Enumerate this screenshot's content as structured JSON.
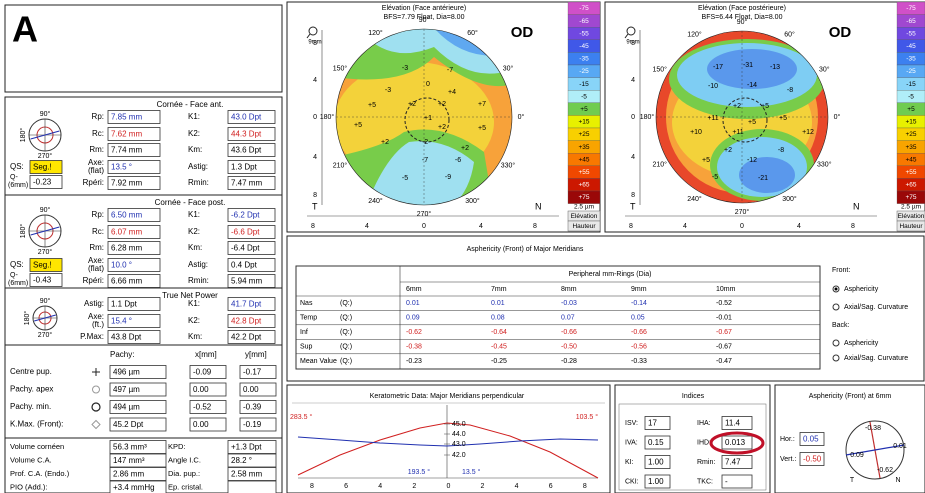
{
  "label": "A",
  "front": {
    "title": "Cornée - Face ant.",
    "icon": [
      "90°",
      "180°",
      "270°"
    ],
    "fields": [
      {
        "label": "Rp:",
        "value": "7.85 mm",
        "color": "#2030b0"
      },
      {
        "label": "Rc:",
        "value": "7.62 mm",
        "color": "#d02020"
      },
      {
        "label": "Rm:",
        "value": "7.74 mm"
      },
      {
        "label": "Axe:",
        "sublabel": "(flat)",
        "value": "13.5 °",
        "color": "#2030b0"
      },
      {
        "label": "Rpéri:",
        "value": "7.92 mm"
      },
      {
        "label": "K1:",
        "value": "43.0 Dpt",
        "color": "#2030b0"
      },
      {
        "label": "K2:",
        "value": "44.3 Dpt",
        "color": "#d02020"
      },
      {
        "label": "Km:",
        "value": "43.6 Dpt"
      },
      {
        "label": "Astig:",
        "value": "1.3 Dpt"
      },
      {
        "label": "Rmin:",
        "value": "7.47 mm"
      }
    ],
    "qs": {
      "label": "QS:",
      "value": "Seg.!"
    },
    "q": {
      "label": "Q-",
      "sublabel": "(6mm)",
      "value": "-0.23"
    }
  },
  "back": {
    "title": "Cornée - Face post.",
    "icon": [
      "90°",
      "180°",
      "270°"
    ],
    "fields": [
      {
        "label": "Rp:",
        "value": "6.50 mm",
        "color": "#2030b0"
      },
      {
        "label": "Rc:",
        "value": "6.07 mm",
        "color": "#d02020"
      },
      {
        "label": "Rm:",
        "value": "6.28 mm"
      },
      {
        "label": "Axe:",
        "sublabel": "(flat)",
        "value": "10.0 °",
        "color": "#2030b0"
      },
      {
        "label": "Rpéri:",
        "value": "6.66 mm"
      },
      {
        "label": "K1:",
        "value": "-6.2 Dpt",
        "color": "#2030b0"
      },
      {
        "label": "K2:",
        "value": "-6.6 Dpt",
        "color": "#d02020"
      },
      {
        "label": "Km:",
        "value": "-6.4 Dpt"
      },
      {
        "label": "Astig:",
        "value": "0.4 Dpt"
      },
      {
        "label": "Rmin:",
        "value": "5.94 mm"
      }
    ],
    "qs": {
      "label": "QS:",
      "value": "Seg.!"
    },
    "q": {
      "label": "Q-",
      "sublabel": "(6mm)",
      "value": "-0.43"
    }
  },
  "tnp": {
    "title": "True Net Power",
    "icon": [
      "90°",
      "180°",
      "270°"
    ],
    "fields": [
      {
        "label": "Astig:",
        "value": "1.1 Dpt"
      },
      {
        "label": "Axe:",
        "sublabel": "(ft.)",
        "value": "15.4 °",
        "color": "#2030b0"
      },
      {
        "label": "P.Max:",
        "value": "43.8 Dpt"
      },
      {
        "label": "K1:",
        "value": "41.7 Dpt",
        "color": "#2030b0"
      },
      {
        "label": "K2:",
        "value": "42.8 Dpt",
        "color": "#d02020"
      },
      {
        "label": "Km:",
        "value": "42.2 Dpt"
      }
    ]
  },
  "pachy": {
    "headers": [
      "Pachy:",
      "x[mm]",
      "y[mm]"
    ],
    "rows": [
      {
        "label": "Centre pup.",
        "cells": [
          "496 µm",
          "-0.09",
          "-0.17"
        ]
      },
      {
        "label": "Pachy. apex",
        "cells": [
          "497 µm",
          "0.00",
          "0.00"
        ]
      },
      {
        "label": "Pachy. min.",
        "cells": [
          "494 µm",
          "-0.52",
          "-0.39"
        ]
      },
      {
        "label": "K.Max. (Front):",
        "cells": [
          "45.2 Dpt",
          "0.00",
          "-0.19"
        ]
      }
    ]
  },
  "volume": {
    "rows": [
      {
        "label": "Volume cornéen",
        "value": "56.3 mm³",
        "label2": "KPD:",
        "value2": "+1.3 Dpt"
      },
      {
        "label": "Volume C.A.",
        "value": "147 mm³",
        "label2": "Angle I.C.",
        "value2": "28.2 °"
      },
      {
        "label": "Prof. C.A. (Endo.)",
        "value": "2.86 mm",
        "label2": "Dia. pup.:",
        "value2": "2.58 mm"
      },
      {
        "label": "PIO (Add.):",
        "value": "+3.4 mmHg",
        "label2": "Ep. cristal."
      }
    ]
  },
  "color_scale": {
    "labels": [
      "-75",
      "-65",
      "-55",
      "-45",
      "-35",
      "-25",
      "-15",
      "-5",
      "+5",
      "+15",
      "+25",
      "+35",
      "+45",
      "+55",
      "+65",
      "+75"
    ],
    "colors": [
      "#d050c8",
      "#a048d0",
      "#7048e0",
      "#4058e8",
      "#3c80f0",
      "#58a8f4",
      "#88d4f8",
      "#b0eef8",
      "#70cc50",
      "#e8f000",
      "#f8d000",
      "#f8a400",
      "#f87800",
      "#f04800",
      "#cc1800",
      "#9a0808"
    ],
    "unit": "2.5 µm",
    "modes": [
      "Elévation",
      "Hauteur"
    ]
  },
  "axis_ticks": [
    "8",
    "4",
    "0",
    "4",
    "8"
  ],
  "maps": [
    {
      "title": "Elévation (Face antérieure)",
      "subtitle": "BFS=7.79 Float, Dia=8.00",
      "eye": "OD",
      "zoom": "9mm",
      "sides": [
        "T",
        "N"
      ],
      "degrees": [
        "90°",
        "120°",
        "60°",
        "150°",
        "30°",
        "180°",
        "0°",
        "210°",
        "330°",
        "240°",
        "300°",
        "270°"
      ],
      "spots": [
        "-3",
        "-7",
        "-3",
        "0",
        "+4",
        "+5",
        "+2",
        "+2",
        "+7",
        "+5",
        "+1",
        "+2",
        "+5",
        "+2",
        "-2",
        "+2",
        "-7",
        "-6",
        "-5",
        "-9"
      ]
    },
    {
      "title": "Elévation (Face postérieure)",
      "subtitle": "BFS=6.44 Float, Dia=8.00",
      "eye": "OD",
      "zoom": "9mm",
      "sides": [
        "T",
        "N"
      ],
      "degrees": [
        "90°",
        "120°",
        "60°",
        "150°",
        "30°",
        "180°",
        "0°",
        "210°",
        "330°",
        "240°",
        "300°",
        "270°"
      ],
      "spots": [
        "-17",
        "-31",
        "-13",
        "-10",
        "-14",
        "-8",
        "+2",
        "+5",
        "+11",
        "+5",
        "+5",
        "+10",
        "+11",
        "+12",
        "+2",
        "-12",
        "-8",
        "+5",
        "-5",
        "-21"
      ]
    }
  ],
  "asphericity": {
    "title": "Asphericity (Front) of Major Meridians",
    "group": "Peripheral mm-Rings (Dia)",
    "columns": [
      "6mm",
      "7mm",
      "8mm",
      "9mm",
      "10mm"
    ],
    "rows": [
      {
        "label": "Nas",
        "q": "(Q:)",
        "values": [
          "0.01",
          "0.01",
          "-0.03",
          "-0.14",
          "-0.52"
        ],
        "colors": [
          "#2030b0",
          "#2030b0",
          "#2030b0",
          "#2030b0",
          "#000000"
        ]
      },
      {
        "label": "Temp",
        "q": "(Q:)",
        "values": [
          "0.09",
          "0.08",
          "0.07",
          "0.05",
          "-0.01"
        ],
        "colors": [
          "#2030b0",
          "#2030b0",
          "#2030b0",
          "#2030b0",
          "#000000"
        ]
      },
      {
        "label": "Inf",
        "q": "(Q:)",
        "values": [
          "-0.62",
          "-0.64",
          "-0.66",
          "-0.66",
          "-0.67"
        ],
        "colors": [
          "#d02020",
          "#d02020",
          "#d02020",
          "#d02020",
          "#d02020"
        ]
      },
      {
        "label": "Sup",
        "q": "(Q:)",
        "values": [
          "-0.38",
          "-0.45",
          "-0.50",
          "-0.56",
          "-0.67"
        ],
        "colors": [
          "#d02020",
          "#d02020",
          "#d02020",
          "#d02020",
          "#000000"
        ]
      },
      {
        "label": "Mean Value",
        "q": "(Q:)",
        "values": [
          "-0.23",
          "-0.25",
          "-0.28",
          "-0.33",
          "-0.47"
        ],
        "colors": [
          "#000000",
          "#000000",
          "#000000",
          "#000000",
          "#000000"
        ]
      }
    ],
    "options": {
      "front": "Front:",
      "back": "Back:",
      "items": [
        "Asphericity",
        "Axial/Sag. Curvature",
        "Asphericity",
        "Axial/Sag. Curvature"
      ]
    }
  },
  "keratometric": {
    "title": "Keratometric Data: Major Meridians perpendicular",
    "red_left": "283.5 °",
    "red_right": "103.5 °",
    "blue_left": "193.5 °",
    "blue_right": "13.5 °",
    "scale": [
      "45.0",
      "44.0",
      "43.0",
      "42.0"
    ],
    "x_ticks": [
      "8",
      "6",
      "4",
      "2",
      "0",
      "2",
      "4",
      "6",
      "8"
    ]
  },
  "indices": {
    "title": "Indices",
    "items": [
      {
        "label": "ISV:",
        "value": "17"
      },
      {
        "label": "IHA:",
        "value": "11.4"
      },
      {
        "label": "IVA:",
        "value": "0.15"
      },
      {
        "label": "IHD:",
        "value": "0.013"
      },
      {
        "label": "KI:",
        "value": "1.00"
      },
      {
        "label": "Rmin:",
        "value": "7.47"
      },
      {
        "label": "CKI:",
        "value": "1.00"
      },
      {
        "label": "TKC:",
        "value": "-"
      }
    ]
  },
  "asph6": {
    "title": "Asphericity (Front) at 6mm",
    "hor": {
      "label": "Hor.:",
      "value": "0.05"
    },
    "vert": {
      "label": "Vert.:",
      "value": "-0.50"
    },
    "dial": [
      "-0.38",
      "0.01",
      "0.09",
      "-0.62"
    ],
    "sides": [
      "T",
      "N"
    ]
  }
}
